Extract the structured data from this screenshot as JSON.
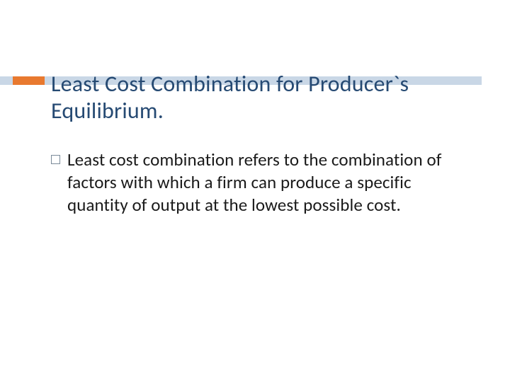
{
  "colors": {
    "accent": "#e8792f",
    "underline": "#c9d7e6",
    "title_text": "#264a73",
    "body_text": "#1a1a1a",
    "bullet_border": "#7a8a99",
    "background": "#ffffff"
  },
  "title": "Least Cost Combination for Producer`s Equilibrium.",
  "body": {
    "items": [
      "Least cost combination refers to the combination of factors with which a firm can produce a specific quantity of output at the lowest possible cost."
    ]
  },
  "layout": {
    "title_fontsize": 32,
    "body_fontsize": 25
  }
}
